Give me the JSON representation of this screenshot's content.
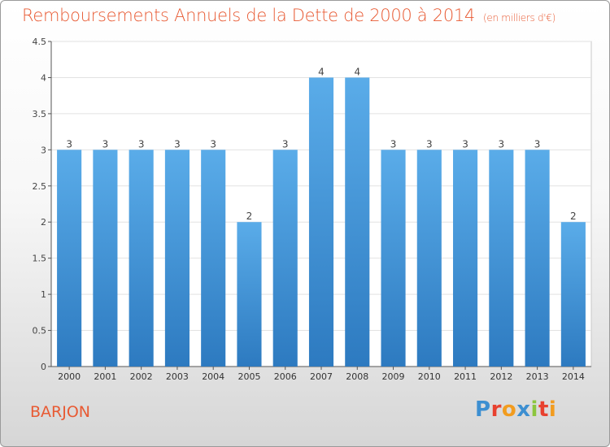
{
  "chart_data": {
    "type": "bar",
    "title": "Remboursements Annuels de la Dette de 2000 à 2014",
    "unit_note": "(en milliers d'€)",
    "categories": [
      "2000",
      "2001",
      "2002",
      "2003",
      "2004",
      "2005",
      "2006",
      "2007",
      "2008",
      "2009",
      "2010",
      "2011",
      "2012",
      "2013",
      "2014"
    ],
    "values": [
      3,
      3,
      3,
      3,
      3,
      2,
      3,
      4,
      4,
      3,
      3,
      3,
      3,
      3,
      2
    ],
    "data_labels": [
      "3",
      "3",
      "3",
      "3",
      "3",
      "2",
      "3",
      "4",
      "4",
      "3",
      "3",
      "3",
      "3",
      "3",
      "2"
    ],
    "yticks": [
      0,
      0.5,
      1,
      1.5,
      2,
      2.5,
      3,
      3.5,
      4,
      4.5
    ],
    "ytick_labels": [
      "0",
      "0.5",
      "1",
      "1.5",
      "2",
      "2.5",
      "3",
      "3.5",
      "4",
      "4.5"
    ],
    "ylim": [
      0,
      4.5
    ],
    "grid": true,
    "bar_color": "#4a9de0"
  },
  "footer": {
    "commune": "BARJON",
    "logo_letters": [
      "P",
      "r",
      "o",
      "x",
      "i",
      "t",
      "i"
    ],
    "logo_colors": [
      "#3d8fd1",
      "#e8412f",
      "#f29c1f",
      "#3d8fd1",
      "#8cc63e",
      "#e8412f",
      "#f29c1f"
    ]
  }
}
